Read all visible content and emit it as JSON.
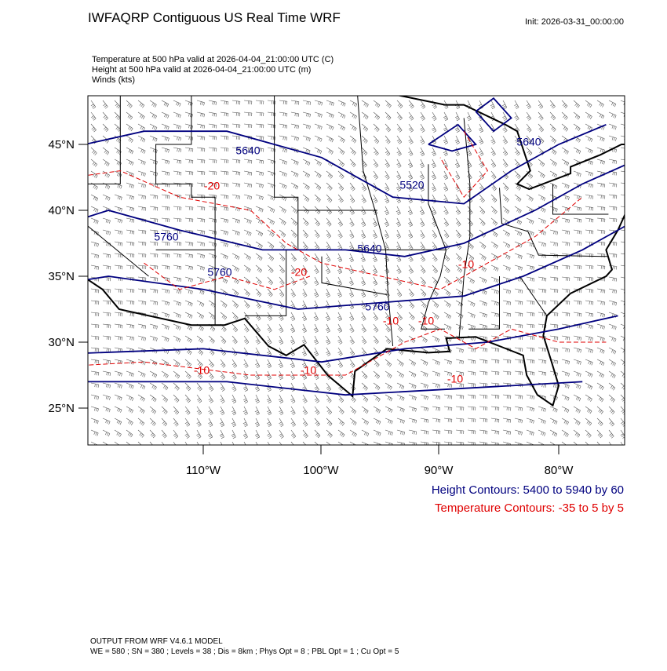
{
  "header": {
    "title": "IWFAQRP Contiguous US Real Time WRF",
    "init": "Init: 2026-03-31_00:00:00",
    "fields": [
      "Temperature at 500 hPa valid at 2026-04-04_21:00:00 UTC   (C)",
      "Height at 500 hPa valid at 2026-04-04_21:00:00 UTC   (m)",
      "Winds   (kts)"
    ]
  },
  "map": {
    "lat_labels": [
      "45°N",
      "40°N",
      "35°N",
      "30°N",
      "25°N"
    ],
    "lon_labels": [
      "110°W",
      "100°W",
      "90°W",
      "80°W"
    ],
    "height_labels": [
      "5640",
      "5640",
      "5520",
      "5760",
      "5640",
      "5760",
      "5760"
    ],
    "temperature_labels": [
      "-20",
      "-20",
      "-10",
      "-10",
      "-10",
      "-10",
      "-10",
      "-10"
    ]
  },
  "legend": {
    "height": "Height Contours: 5400 to 5940 by 60",
    "temperature": "Temperature Contours: -35 to 5 by 5"
  },
  "footer": [
    "OUTPUT FROM WRF V4.6.1 MODEL",
    "WE = 580 ; SN = 380 ; Levels = 38 ; Dis = 8km ; Phys Opt = 8 ; PBL Opt = 1 ; Cu Opt = 5"
  ]
}
